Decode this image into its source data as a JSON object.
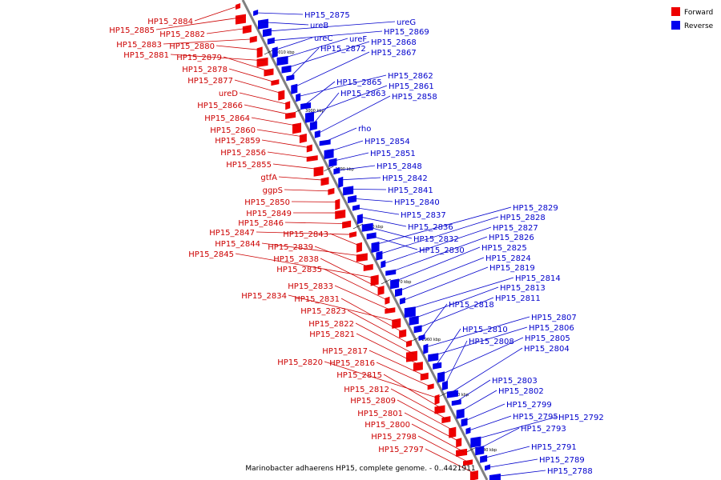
{
  "legend": {
    "forward": {
      "label": "Forward",
      "color": "#ee0000"
    },
    "reverse": {
      "label": "Reverse",
      "color": "#0000ee"
    }
  },
  "caption": "Marinobacter adhaerens HP15, complete genome. - 0..4421911",
  "backbone_color": "#808080",
  "ticks": [
    "3010 kbp",
    "3000 kbp",
    "2990 kbp",
    "2980 kbp",
    "2970 kbp",
    "2960 kbp",
    "2950 kbp",
    "2940 kbp"
  ],
  "forward_labels": [
    "HP15_2884",
    "HP15_2885",
    "HP15_2882",
    "HP15_2883",
    "HP15_2880",
    "HP15_2881",
    "HP15_2879",
    "HP15_2878",
    "HP15_2877",
    "ureD",
    "HP15_2866",
    "HP15_2864",
    "HP15_2860",
    "HP15_2859",
    "HP15_2856",
    "HP15_2855",
    "gtfA",
    "ggpS",
    "HP15_2850",
    "HP15_2849",
    "HP15_2846",
    "HP15_2847",
    "HP15_2843",
    "HP15_2844",
    "HP15_2839",
    "HP15_2845",
    "HP15_2838",
    "HP15_2835",
    "HP15_2833",
    "HP15_2834",
    "HP15_2831",
    "HP15_2823",
    "HP15_2822",
    "HP15_2821",
    "HP15_2817",
    "HP15_2816",
    "HP15_2820",
    "HP15_2815",
    "HP15_2812",
    "HP15_2809",
    "HP15_2801",
    "HP15_2800",
    "HP15_2798",
    "HP15_2797"
  ],
  "reverse_labels": [
    "HP15_2875",
    "ureB",
    "ureG",
    "HP15_2869",
    "ureC",
    "ureF",
    "HP15_2868",
    "HP15_2872",
    "HP15_2867",
    "HP15_2862",
    "HP15_2865",
    "HP15_2861",
    "HP15_2863",
    "HP15_2858",
    "rho",
    "HP15_2854",
    "HP15_2851",
    "HP15_2848",
    "HP15_2842",
    "HP15_2841",
    "HP15_2840",
    "HP15_2837",
    "HP15_2836",
    "HP15_2832",
    "HP15_2830",
    "HP15_2829",
    "HP15_2828",
    "HP15_2827",
    "HP15_2826",
    "HP15_2825",
    "HP15_2824",
    "HP15_2819",
    "HP15_2814",
    "HP15_2813",
    "HP15_2811",
    "HP15_2818",
    "HP15_2807",
    "HP15_2806",
    "HP15_2810",
    "HP15_2805",
    "HP15_2808",
    "HP15_2804",
    "HP15_2803",
    "HP15_2802",
    "HP15_2799",
    "HP15_2795",
    "HP15_2792",
    "HP15_2793",
    "HP15_2791",
    "HP15_2789",
    "HP15_2788"
  ]
}
